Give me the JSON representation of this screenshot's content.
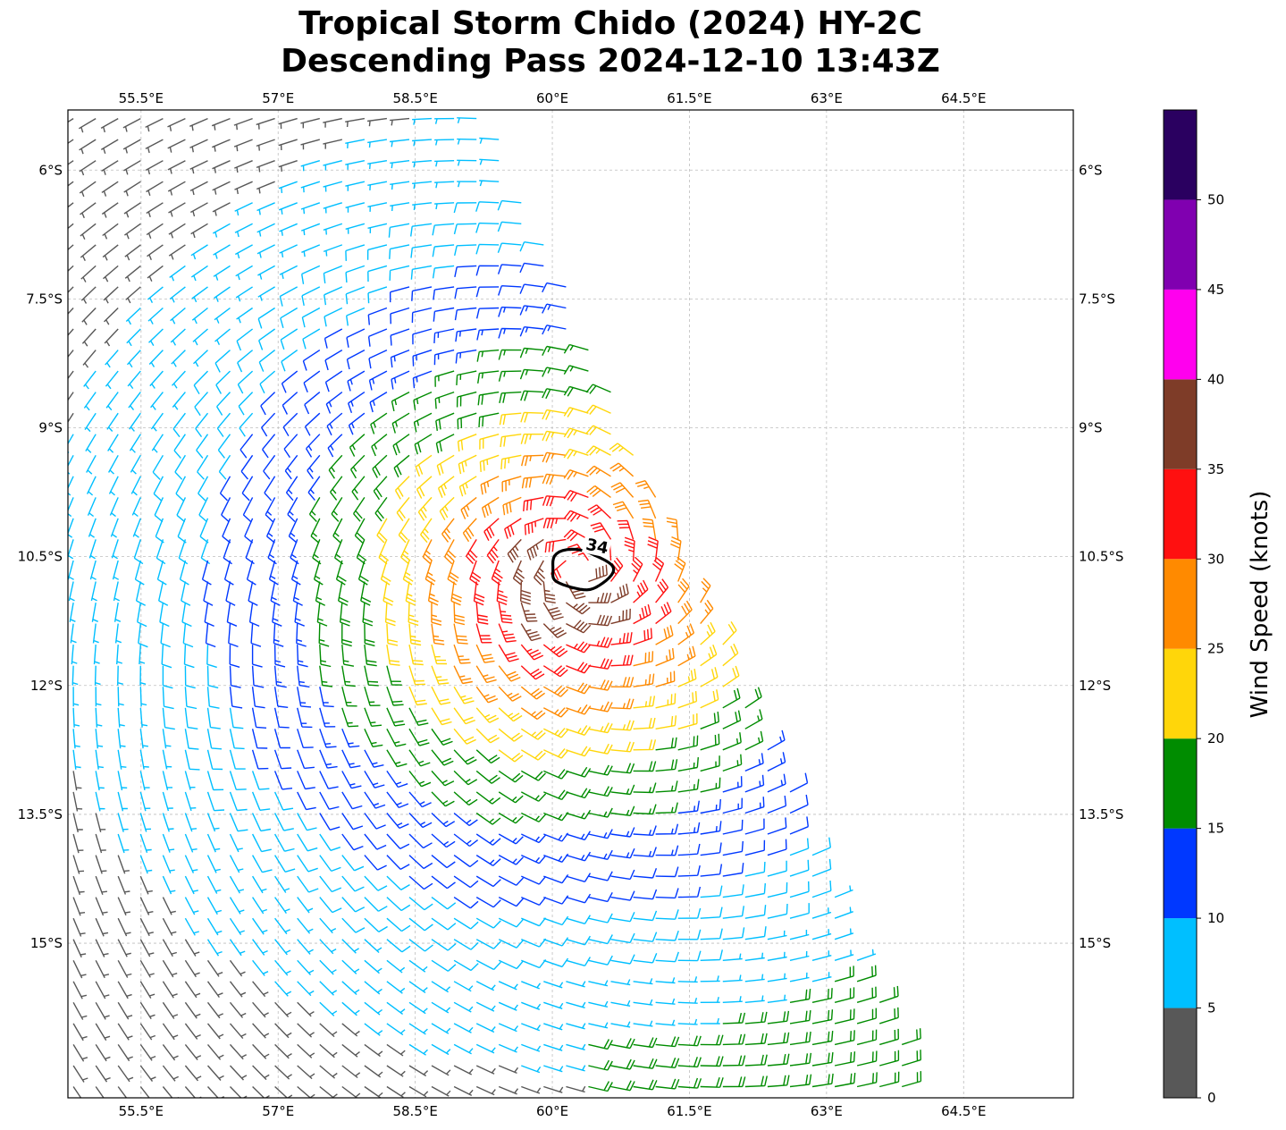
{
  "title": {
    "line1": "Tropical Storm Chido (2024) HY-2C",
    "line2": "Descending Pass 2024-12-10 13:43Z"
  },
  "map": {
    "lon_range": [
      54.7,
      65.7
    ],
    "lat_range": [
      -16.8,
      -5.3
    ],
    "lon_ticks": [
      {
        "value": 55.5,
        "label": "55.5°E"
      },
      {
        "value": 57.0,
        "label": "57°E"
      },
      {
        "value": 58.5,
        "label": "58.5°E"
      },
      {
        "value": 60.0,
        "label": "60°E"
      },
      {
        "value": 61.5,
        "label": "61.5°E"
      },
      {
        "value": 63.0,
        "label": "63°E"
      },
      {
        "value": 64.5,
        "label": "64.5°E"
      }
    ],
    "lat_ticks": [
      {
        "value": -6.0,
        "label": "6°S"
      },
      {
        "value": -7.5,
        "label": "7.5°S"
      },
      {
        "value": -9.0,
        "label": "9°S"
      },
      {
        "value": -10.5,
        "label": "10.5°S"
      },
      {
        "value": -12.0,
        "label": "12°S"
      },
      {
        "value": -13.5,
        "label": "13.5°S"
      },
      {
        "value": -15.0,
        "label": "15°S"
      }
    ],
    "gridlines": true,
    "storm_center": {
      "lon": 60.3,
      "lat": -10.65
    },
    "contour": {
      "label": "34",
      "value_kt": 34,
      "color": "#000000"
    },
    "swath_east_edge": [
      {
        "lat": -5.3,
        "lon": 59.3
      },
      {
        "lat": -16.8,
        "lon": 64.1
      }
    ]
  },
  "colorbar": {
    "label": "Wind Speed (knots)",
    "ticks": [
      "0",
      "5",
      "10",
      "15",
      "20",
      "25",
      "30",
      "35",
      "40",
      "45",
      "50"
    ],
    "bins": [
      {
        "min": 0,
        "max": 5,
        "color": "#585858"
      },
      {
        "min": 5,
        "max": 10,
        "color": "#00bfff"
      },
      {
        "min": 10,
        "max": 15,
        "color": "#0038ff"
      },
      {
        "min": 15,
        "max": 20,
        "color": "#008c00"
      },
      {
        "min": 20,
        "max": 25,
        "color": "#ffd60a"
      },
      {
        "min": 25,
        "max": 30,
        "color": "#ff8a00"
      },
      {
        "min": 30,
        "max": 35,
        "color": "#ff1010"
      },
      {
        "min": 35,
        "max": 40,
        "color": "#7e3c28"
      },
      {
        "min": 40,
        "max": 45,
        "color": "#ff00ee"
      },
      {
        "min": 45,
        "max": 50,
        "color": "#8000b0"
      },
      {
        "min": 50,
        "max": 55,
        "color": "#2a0060"
      }
    ]
  }
}
